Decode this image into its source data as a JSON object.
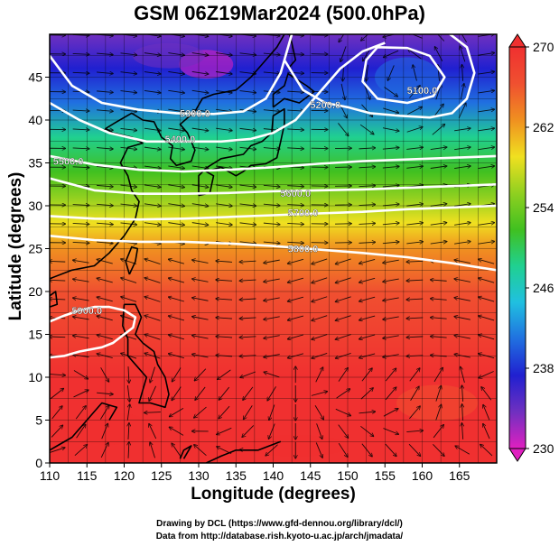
{
  "title": "GSM 06Z19Mar2024 (500.0hPa)",
  "xaxis": {
    "label": "Longitude (degrees)",
    "min": 110,
    "max": 170,
    "ticks": [
      110,
      115,
      120,
      125,
      130,
      135,
      140,
      145,
      150,
      155,
      160,
      165
    ]
  },
  "yaxis": {
    "label": "Latitude  (degrees)",
    "min": 0,
    "max": 50,
    "ticks": [
      0,
      5,
      10,
      15,
      20,
      25,
      30,
      35,
      40,
      45
    ]
  },
  "colorbar": {
    "ticks": [
      230,
      238,
      246,
      254,
      262,
      270
    ],
    "min": 230,
    "max": 270,
    "colors": [
      "#e020c0",
      "#7030c0",
      "#2020d0",
      "#2070e0",
      "#20c0e0",
      "#20d090",
      "#40c020",
      "#90d020",
      "#f0e020",
      "#f09020",
      "#f05030",
      "#f03030"
    ]
  },
  "temperature_field": {
    "stops": [
      {
        "lat": 50,
        "value": 236
      },
      {
        "lat": 46,
        "value": 238.5
      },
      {
        "lat": 42,
        "value": 243
      },
      {
        "lat": 38,
        "value": 247
      },
      {
        "lat": 34,
        "value": 250.5
      },
      {
        "lat": 31,
        "value": 255
      },
      {
        "lat": 28,
        "value": 259
      },
      {
        "lat": 25,
        "value": 263
      },
      {
        "lat": 20,
        "value": 266
      },
      {
        "lat": 10,
        "value": 267
      },
      {
        "lat": 0,
        "value": 268.5
      }
    ]
  },
  "contours": [
    {
      "label": "5300.0",
      "label_pos": [
        129.5,
        40.8
      ],
      "points": [
        [
          110,
          47.5
        ],
        [
          113,
          44
        ],
        [
          117,
          42
        ],
        [
          122,
          41.2
        ],
        [
          127,
          40.8
        ],
        [
          132,
          40.7
        ],
        [
          136,
          41
        ],
        [
          139,
          42.5
        ],
        [
          141,
          45.5
        ],
        [
          142.5,
          50
        ]
      ]
    },
    {
      "label": "5400.0",
      "label_pos": [
        127.5,
        37.8
      ],
      "points": [
        [
          110,
          42
        ],
        [
          114,
          40
        ],
        [
          118,
          38.5
        ],
        [
          123,
          37.5
        ],
        [
          128,
          37.5
        ],
        [
          133,
          37.5
        ],
        [
          137,
          37.8
        ],
        [
          140,
          38.5
        ],
        [
          143,
          40
        ],
        [
          146,
          43
        ],
        [
          149,
          46
        ],
        [
          152,
          48
        ],
        [
          155,
          49
        ]
      ]
    },
    {
      "label": "5200.0",
      "label_pos": [
        147,
        41.8
      ],
      "points": [
        [
          141.5,
          47
        ],
        [
          144,
          43.5
        ],
        [
          147,
          42
        ],
        [
          150,
          41.5
        ],
        [
          153,
          40.8
        ],
        [
          157,
          40.5
        ],
        [
          161,
          40.3
        ],
        [
          164,
          40.8
        ],
        [
          166,
          42.5
        ],
        [
          167,
          45.5
        ],
        [
          166,
          48.5
        ],
        [
          163,
          50.5
        ]
      ]
    },
    {
      "label": "5100.0",
      "label_pos": [
        160,
        43.5
      ],
      "points": [
        [
          154,
          48.5
        ],
        [
          158,
          48.4
        ],
        [
          161,
          47.5
        ],
        [
          163,
          45
        ],
        [
          161.5,
          42.8
        ],
        [
          158,
          42
        ],
        [
          154,
          42.5
        ],
        [
          152,
          44.5
        ],
        [
          152.5,
          47
        ],
        [
          154,
          48.5
        ]
      ]
    },
    {
      "label": "5500.0",
      "label_pos": [
        112.5,
        35.2
      ],
      "points": [
        [
          110,
          35.8
        ],
        [
          116,
          34.8
        ],
        [
          122,
          34.2
        ],
        [
          128,
          34
        ],
        [
          134,
          34.2
        ],
        [
          140,
          34.5
        ],
        [
          146,
          34.9
        ],
        [
          152,
          35.2
        ],
        [
          158,
          35.4
        ],
        [
          164,
          35.6
        ],
        [
          170,
          35.8
        ]
      ]
    },
    {
      "label": "5600.0",
      "label_pos": [
        143,
        31.5
      ],
      "points": [
        [
          110,
          33.2
        ],
        [
          116,
          31.8
        ],
        [
          122,
          31.4
        ],
        [
          128,
          31.4
        ],
        [
          134,
          31.5
        ],
        [
          140,
          31.7
        ],
        [
          146,
          31.8
        ],
        [
          152,
          31.9
        ],
        [
          158,
          32.1
        ],
        [
          164,
          32.3
        ],
        [
          170,
          32.5
        ]
      ]
    },
    {
      "label": "5700.0",
      "label_pos": [
        144,
        29.2
      ],
      "points": [
        [
          110,
          28.8
        ],
        [
          116,
          28.5
        ],
        [
          122,
          28.4
        ],
        [
          128,
          28.5
        ],
        [
          134,
          28.7
        ],
        [
          140,
          28.9
        ],
        [
          146,
          29.1
        ],
        [
          152,
          29.3
        ],
        [
          158,
          29.6
        ],
        [
          164,
          29.8
        ],
        [
          170,
          30
        ]
      ]
    },
    {
      "label": "5800.0",
      "label_pos": [
        144,
        25.0
      ],
      "points": [
        [
          110,
          26.5
        ],
        [
          116,
          26
        ],
        [
          122,
          25.8
        ],
        [
          128,
          25.8
        ],
        [
          134,
          25.6
        ],
        [
          140,
          25.3
        ],
        [
          146,
          24.9
        ],
        [
          152,
          24.5
        ],
        [
          158,
          24
        ],
        [
          164,
          23.3
        ],
        [
          170,
          22.5
        ]
      ]
    },
    {
      "label": "5900.0",
      "label_pos": [
        115,
        17.8
      ],
      "points": [
        [
          110,
          16.5
        ],
        [
          112,
          17.2
        ],
        [
          114,
          17.8
        ],
        [
          116,
          18.2
        ],
        [
          118,
          18.2
        ],
        [
          120,
          17.8
        ],
        [
          121.5,
          17
        ],
        [
          121.2,
          15.8
        ],
        [
          120,
          15
        ],
        [
          118.5,
          14
        ],
        [
          117,
          13.5
        ],
        [
          114,
          13
        ],
        [
          112,
          12.5
        ],
        [
          110,
          12.3
        ]
      ]
    }
  ],
  "credits": {
    "line1": "Drawing by DCL (https://www.gfd-dennou.org/library/dcl/)",
    "line2": "Data from http://database.rish.kyoto-u.ac.jp/arch/jmadata/"
  }
}
